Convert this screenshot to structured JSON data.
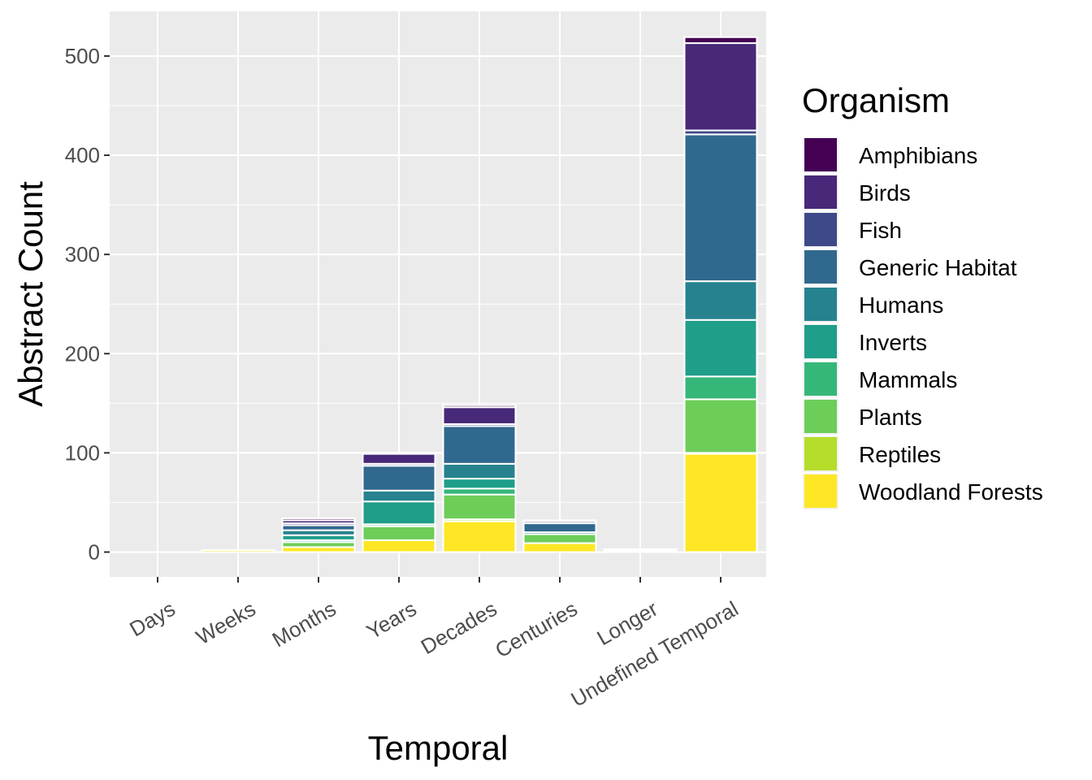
{
  "chart_data": {
    "type": "bar",
    "stacked": true,
    "xlabel": "Temporal",
    "ylabel": "Abstract Count",
    "ylim": [
      -25,
      545
    ],
    "yticks": [
      0,
      100,
      200,
      300,
      400,
      500
    ],
    "grid": true,
    "legend": {
      "title": "Organism",
      "placement": "right"
    },
    "categories": [
      "Days",
      "Weeks",
      "Months",
      "Years",
      "Decades",
      "Centuries",
      "Longer",
      "Undefined Temporal"
    ],
    "series": [
      {
        "name": "Woodland Forests",
        "color": "#FDE725",
        "values": [
          0,
          2,
          5,
          12,
          31,
          9,
          1,
          99
        ]
      },
      {
        "name": "Reptiles",
        "color": "#B5DE2B",
        "values": [
          0,
          0,
          0,
          0,
          2,
          0,
          0,
          1
        ]
      },
      {
        "name": "Plants",
        "color": "#6DCD59",
        "values": [
          0,
          0,
          5,
          14,
          25,
          9,
          0,
          54
        ]
      },
      {
        "name": "Mammals",
        "color": "#35B779",
        "values": [
          0,
          0,
          2,
          2,
          6,
          0,
          0,
          23
        ]
      },
      {
        "name": "Inverts",
        "color": "#1F9E89",
        "values": [
          0,
          0,
          5,
          23,
          10,
          0,
          1,
          57
        ]
      },
      {
        "name": "Humans",
        "color": "#26828E",
        "values": [
          0,
          0,
          5,
          11,
          15,
          2,
          0,
          39
        ]
      },
      {
        "name": "Generic Habitat",
        "color": "#31688E",
        "values": [
          0,
          0,
          5,
          25,
          38,
          9,
          1,
          148
        ]
      },
      {
        "name": "Fish",
        "color": "#3E4989",
        "values": [
          0,
          0,
          2,
          2,
          2,
          2,
          0,
          4
        ]
      },
      {
        "name": "Birds",
        "color": "#482878",
        "values": [
          0,
          0,
          3,
          10,
          17,
          0,
          0,
          88
        ]
      },
      {
        "name": "Amphibians",
        "color": "#440154",
        "values": [
          0,
          0,
          2,
          1,
          2,
          1,
          0,
          6
        ]
      }
    ]
  }
}
